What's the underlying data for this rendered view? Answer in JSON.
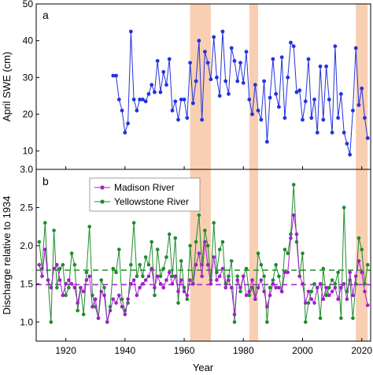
{
  "colors": {
    "swe": "#2233dd",
    "madison": "#a020c8",
    "yellowstone": "#1e8c2a",
    "shade": "#f7c7a4",
    "madison_mean": "#b020e0",
    "yellowstone_mean": "#2a9a2a"
  },
  "chart_data": [
    {
      "type": "line",
      "panel_label": "a",
      "xlabel": "",
      "ylabel": "April SWE (cm)",
      "xlim": [
        1910,
        2023
      ],
      "ylim": [
        5,
        50
      ],
      "yticks": [
        10,
        20,
        30,
        40,
        50
      ],
      "grid": false,
      "shaded_periods": [
        [
          1962,
          1969
        ],
        [
          1982,
          1985
        ],
        [
          2018,
          2022
        ]
      ],
      "series": [
        {
          "x": [
            1936,
            1937,
            1938,
            1939,
            1940,
            1941,
            1942,
            1943,
            1944,
            1945,
            1946,
            1947,
            1948,
            1949,
            1950,
            1951,
            1952,
            1953,
            1954,
            1955,
            1956,
            1957,
            1958,
            1959,
            1960,
            1961,
            1962,
            1963,
            1964,
            1965,
            1966,
            1967,
            1968,
            1969,
            1970,
            1971,
            1972,
            1973,
            1974,
            1975,
            1976,
            1977,
            1978,
            1979,
            1980,
            1981,
            1982,
            1983,
            1984,
            1985,
            1986,
            1987,
            1988,
            1989,
            1990,
            1991,
            1992,
            1993,
            1994,
            1995,
            1996,
            1997,
            1998,
            1999,
            2000,
            2001,
            2002,
            2003,
            2004,
            2005,
            2006,
            2007,
            2008,
            2009,
            2010,
            2011,
            2012,
            2013,
            2014,
            2015,
            2016,
            2017,
            2018,
            2019,
            2020,
            2021,
            2022
          ],
          "values": [
            30.5,
            30.5,
            24,
            21,
            15,
            17.5,
            42.5,
            24,
            21,
            24,
            24,
            23.5,
            25.5,
            28,
            26,
            34.5,
            26,
            31.5,
            28,
            35,
            21,
            23.5,
            18.5,
            24,
            24,
            19,
            34,
            23,
            29,
            40,
            18.5,
            37,
            34,
            29.5,
            41,
            30,
            25,
            42.5,
            29,
            25.5,
            38,
            34.5,
            29,
            34,
            28.5,
            37,
            24,
            20,
            28,
            21,
            18.5,
            29,
            12.5,
            24.5,
            35,
            25.5,
            22,
            35.5,
            19,
            30,
            39.5,
            38.5,
            26,
            26.5,
            18.5,
            23.5,
            35,
            19,
            24,
            15,
            33,
            18.5,
            33,
            24,
            15,
            38.5,
            19,
            25.5,
            15,
            12,
            9,
            21,
            38,
            22.5,
            27,
            19,
            13.5
          ]
        }
      ]
    },
    {
      "type": "line",
      "panel_label": "b",
      "xlabel": "Year",
      "ylabel": "Discharge relative to 1934",
      "xlim": [
        1910,
        2023
      ],
      "ylim": [
        0.75,
        3.0
      ],
      "yticks": [
        1.0,
        1.5,
        2.0,
        2.5,
        3.0
      ],
      "xticks": [
        1920,
        1940,
        1960,
        1980,
        2000,
        2020
      ],
      "grid": false,
      "legend_position": "top-left",
      "shaded_periods": [
        [
          1962,
          1969
        ],
        [
          1982,
          1985
        ],
        [
          2018,
          2022
        ]
      ],
      "series": [
        {
          "name": "Madison River",
          "mean": 1.49,
          "x": [
            1911,
            1912,
            1913,
            1914,
            1915,
            1916,
            1917,
            1918,
            1919,
            1920,
            1921,
            1922,
            1923,
            1924,
            1925,
            1926,
            1927,
            1928,
            1929,
            1930,
            1931,
            1932,
            1933,
            1934,
            1935,
            1936,
            1937,
            1938,
            1939,
            1940,
            1941,
            1942,
            1943,
            1944,
            1945,
            1946,
            1947,
            1948,
            1949,
            1950,
            1951,
            1952,
            1953,
            1954,
            1955,
            1956,
            1957,
            1958,
            1959,
            1960,
            1961,
            1962,
            1963,
            1964,
            1965,
            1966,
            1967,
            1968,
            1969,
            1970,
            1971,
            1972,
            1973,
            1974,
            1975,
            1976,
            1977,
            1978,
            1979,
            1980,
            1981,
            1982,
            1983,
            1984,
            1985,
            1986,
            1987,
            1988,
            1989,
            1990,
            1991,
            1992,
            1993,
            1994,
            1995,
            1996,
            1997,
            1998,
            1999,
            2000,
            2001,
            2002,
            2003,
            2004,
            2005,
            2006,
            2007,
            2008,
            2009,
            2010,
            2011,
            2012,
            2013,
            2014,
            2015,
            2016,
            2017,
            2018,
            2019,
            2020,
            2021,
            2022
          ],
          "values": [
            1.75,
            1.6,
            1.95,
            1.55,
            1.45,
            1.7,
            1.75,
            1.55,
            1.35,
            1.5,
            1.55,
            1.5,
            1.45,
            1.25,
            1.45,
            1.4,
            1.55,
            1.6,
            1.2,
            1.3,
            1.05,
            1.4,
            1.35,
            1.0,
            1.15,
            1.3,
            1.25,
            1.35,
            1.2,
            1.1,
            1.3,
            1.5,
            1.55,
            1.35,
            1.45,
            1.5,
            1.55,
            1.6,
            1.7,
            1.45,
            1.6,
            1.5,
            1.45,
            1.55,
            1.65,
            1.5,
            1.6,
            1.4,
            1.55,
            1.4,
            1.35,
            1.55,
            1.5,
            1.75,
            1.9,
            1.6,
            2.05,
            1.75,
            1.5,
            1.85,
            1.55,
            1.6,
            1.7,
            1.45,
            1.55,
            1.45,
            1.1,
            1.55,
            1.45,
            1.6,
            1.35,
            1.4,
            1.55,
            1.3,
            1.45,
            1.55,
            1.4,
            1.2,
            1.35,
            1.5,
            1.45,
            1.45,
            1.4,
            1.65,
            1.65,
            2.1,
            2.4,
            2.15,
            1.6,
            1.5,
            1.25,
            1.4,
            1.3,
            1.25,
            1.45,
            1.5,
            1.3,
            1.45,
            1.35,
            1.4,
            1.45,
            1.3,
            1.45,
            1.5,
            1.3,
            1.65,
            1.35,
            1.6,
            1.8,
            1.65,
            1.4,
            1.22
          ]
        },
        {
          "name": "Yellowstone River",
          "mean": 1.68,
          "x": [
            1911,
            1912,
            1913,
            1914,
            1915,
            1916,
            1917,
            1918,
            1919,
            1920,
            1921,
            1922,
            1923,
            1924,
            1925,
            1926,
            1927,
            1928,
            1929,
            1930,
            1931,
            1932,
            1933,
            1934,
            1935,
            1936,
            1937,
            1938,
            1939,
            1940,
            1941,
            1942,
            1943,
            1944,
            1945,
            1946,
            1947,
            1948,
            1949,
            1950,
            1951,
            1952,
            1953,
            1954,
            1955,
            1956,
            1957,
            1958,
            1959,
            1960,
            1961,
            1962,
            1963,
            1964,
            1965,
            1966,
            1967,
            1968,
            1969,
            1970,
            1971,
            1972,
            1973,
            1974,
            1975,
            1976,
            1977,
            1978,
            1979,
            1980,
            1981,
            1982,
            1983,
            1984,
            1985,
            1986,
            1987,
            1988,
            1989,
            1990,
            1991,
            1992,
            1993,
            1994,
            1995,
            1996,
            1997,
            1998,
            1999,
            2000,
            2001,
            2002,
            2003,
            2004,
            2005,
            2006,
            2007,
            2008,
            2009,
            2010,
            2011,
            2012,
            2013,
            2014,
            2015,
            2016,
            2017,
            2018,
            2019,
            2020,
            2021,
            2022
          ],
          "values": [
            2.05,
            1.7,
            2.3,
            1.55,
            1.0,
            2.2,
            1.45,
            1.7,
            1.75,
            1.35,
            1.45,
            1.9,
            1.75,
            1.15,
            1.45,
            1.1,
            1.65,
            2.25,
            1.35,
            1.2,
            1.05,
            1.55,
            1.45,
            1.0,
            1.2,
            1.7,
            1.65,
            1.95,
            1.3,
            1.15,
            1.25,
            1.75,
            2.3,
            1.6,
            1.75,
            1.6,
            1.85,
            1.75,
            2.05,
            1.35,
            1.95,
            1.6,
            1.7,
            1.85,
            2.15,
            1.6,
            2.1,
            1.25,
            1.8,
            1.45,
            1.3,
            2.0,
            1.5,
            2.05,
            2.4,
            1.75,
            2.2,
            2.0,
            1.55,
            2.3,
            1.65,
            1.95,
            2.05,
            1.5,
            1.6,
            1.8,
            1.0,
            1.6,
            1.4,
            1.6,
            1.7,
            1.35,
            1.45,
            1.3,
            1.9,
            1.75,
            1.6,
            1.0,
            1.45,
            1.55,
            1.75,
            1.6,
            1.4,
            1.95,
            1.9,
            2.15,
            2.8,
            2.05,
            1.6,
            1.9,
            1.0,
            1.25,
            1.4,
            1.5,
            1.45,
            1.05,
            1.7,
            1.35,
            1.45,
            1.55,
            1.5,
            1.65,
            1.05,
            2.5,
            1.4,
            1.55,
            1.05,
            1.5,
            2.1,
            1.95,
            1.5,
            1.75
          ]
        }
      ]
    }
  ]
}
